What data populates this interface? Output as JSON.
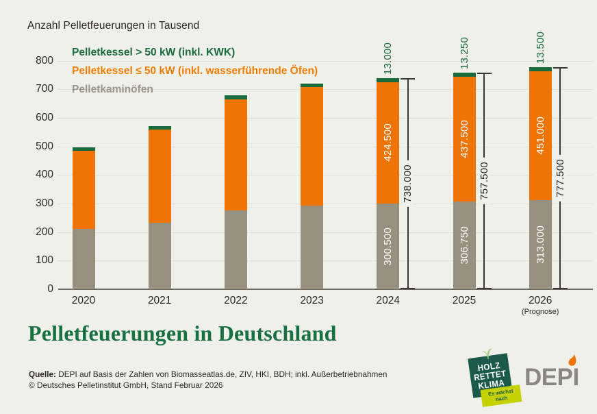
{
  "page": {
    "background": "#F0F0EB"
  },
  "header": {
    "title": "Anzahl Pelletfeuerungen in Tausend"
  },
  "legend": {
    "items": [
      {
        "id": "pelletkessel-gross",
        "label": "Pelletkessel > 50 kW (inkl. KWK)",
        "color": "#1A6C3C"
      },
      {
        "id": "pelletkessel-klein",
        "label": "Pelletkessel ≤ 50 kW (inkl. wasserführende Öfen)",
        "color": "#EF7D00"
      },
      {
        "id": "pelletkaminoefen",
        "label": "Pelletkaminöfen",
        "color": "#9C958C"
      }
    ]
  },
  "chart_data": {
    "type": "bar",
    "stacked": true,
    "title": "Anzahl Pelletfeuerungen in Tausend",
    "unit": "Tausend",
    "categories": [
      "2020",
      "2021",
      "2022",
      "2023",
      "2024",
      "2025",
      "2026"
    ],
    "category_notes": [
      "",
      "",
      "",
      "",
      "",
      "",
      "(Prognose)"
    ],
    "ylim": [
      0,
      800
    ],
    "ytick_step": 100,
    "grid": "horizontal-dotted",
    "series": [
      {
        "name": "Pelletkaminöfen",
        "color": "#97907F",
        "values": [
          211,
          233,
          275,
          292,
          300.5,
          306.75,
          313
        ],
        "value_labels": [
          "",
          "",
          "",
          "",
          "300.500",
          "306.750",
          "313.000"
        ],
        "label_color": "#FFFFFF",
        "label_position": "inside"
      },
      {
        "name": "Pelletkessel ≤ 50 kW (inkl. wasserführende Öfen)",
        "color": "#EE7405",
        "values": [
          274,
          325,
          390,
          415,
          424.5,
          437.5,
          451
        ],
        "value_labels": [
          "",
          "",
          "",
          "",
          "424.500",
          "437.500",
          "451.000"
        ],
        "label_color": "#FFFFFF",
        "label_position": "inside"
      },
      {
        "name": "Pelletkessel > 50 kW (inkl. KWK)",
        "color": "#186B3C",
        "values": [
          12,
          12,
          13,
          13,
          13,
          13.25,
          13.5
        ],
        "value_labels": [
          "",
          "",
          "",
          "",
          "13.000",
          "13.250",
          "13.500"
        ],
        "label_color": "#186B3C",
        "label_position": "above"
      }
    ],
    "totals": [
      "",
      "",
      "",
      "",
      "738.000",
      "757.500",
      "777.500"
    ]
  },
  "footer": {
    "title": "Pelletfeuerungen in Deutschland",
    "source_label": "Quelle:",
    "source_text": " DEPI auf Basis der Zahlen von Biomasseatlas.de, ZIV, HKI, BDH; inkl. Außerbetriebnahmen",
    "copyright": "© Deutsches Pelletinstitut GmbH, Stand Februar 2026"
  },
  "logos": {
    "holz_rettet_klima": {
      "lines": [
        "HOLZ",
        "RETTET",
        "KLIMA"
      ],
      "ribbon": [
        "Es wächst",
        "nach"
      ],
      "badge_color": "#1B5A4A",
      "ribbon_color": "#C6D200",
      "ribbon_text_color": "#1B5A4A"
    },
    "depi": {
      "text": "DEPI",
      "color": "#8B8680",
      "flame_color": "#EE7405"
    }
  }
}
